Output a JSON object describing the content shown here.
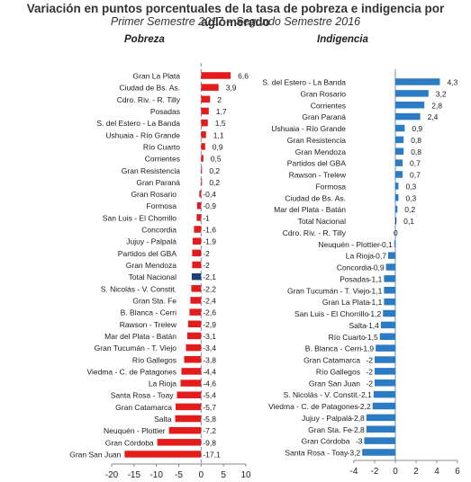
{
  "title": "Variación en puntos porcentuales de la tasa de pobreza e indigencia por aglomerado",
  "subtitle": "Primer Semestre 2017 – Segundo Semestre 2016",
  "colors": {
    "negative": "#e31b1b",
    "positive": "#e31b1b",
    "national": "#1f3e78",
    "indigence": "#2b7cc4"
  },
  "chart_data": [
    {
      "type": "bar",
      "orientation": "horizontal",
      "title": "Pobreza",
      "xlim": [
        -20,
        10
      ],
      "xticks": [
        -20,
        -15,
        -10,
        -5,
        0,
        5,
        10
      ],
      "categories": [
        "Gran La Plata",
        "Ciudad de Bs. As.",
        "Cdro. Riv. - R. Tilly",
        "Posadas",
        "S. del Estero - La Banda",
        "Ushuaia - Río Grande",
        "Río Cuarto",
        "Corrientes",
        "Gran Resistencia",
        "Gran Paraná",
        "Gran Rosario",
        "Formosa",
        "San Luis - El Chorrillo",
        "Concordia",
        "Jujuy - Palpalá",
        "Partidos del GBA",
        "Gran Mendoza",
        "Total Nacional",
        "S. Nicolás - V. Constit.",
        "Gran Sta. Fe",
        "B. Blanca - Cerri",
        "Rawson - Trelew",
        "Mar del Plata - Batán",
        "Gran Tucumán - T. Viejo",
        "Río Gallegos",
        "Viedma - C. de Patagones",
        "La Rioja",
        "Santa Rosa - Toay",
        "Gran Catamarca",
        "Salta",
        "Neuquén - Plottier",
        "Gran Córdoba",
        "Gran San Juan"
      ],
      "values": [
        6.6,
        3.9,
        2,
        1.7,
        1.5,
        1.1,
        0.9,
        0.5,
        0.2,
        0.2,
        -0.4,
        -0.9,
        -1,
        -1.6,
        -1.9,
        -2,
        -2,
        -2.1,
        -2.2,
        -2.4,
        -2.6,
        -2.9,
        -3.1,
        -3.4,
        -3.8,
        -4.4,
        -4.6,
        -5.4,
        -5.7,
        -5.8,
        -7.2,
        -9.8,
        -17.1
      ],
      "value_labels": [
        "6,6",
        "3,9",
        "2",
        "1,7",
        "1,5",
        "1,1",
        "0,9",
        "0,5",
        "0,2",
        "0,2",
        "-0,4",
        "-0,9",
        "-1",
        "-1,6",
        "-1,9",
        "-2",
        "-2",
        "-2,1",
        "-2,2",
        "-2,4",
        "-2,6",
        "-2,9",
        "-3,1",
        "-3,4",
        "-3,8",
        "-4,4",
        "-4,6",
        "-5,4",
        "-5,7",
        "-5,8",
        "-7,2",
        "-9,8",
        "-17,1"
      ],
      "highlight": "Total Nacional",
      "reference_line": "dashed"
    },
    {
      "type": "bar",
      "orientation": "horizontal",
      "title": "Indigencia",
      "xlim": [
        -4,
        6
      ],
      "xticks": [
        -4,
        -2,
        0,
        2,
        4,
        6
      ],
      "categories": [
        "S. del Estero - La Banda",
        "Gran Rosario",
        "Corrientes",
        "Gran Paraná",
        "Ushuaia - Río Grande",
        "Gran Resistencia",
        "Gran Mendoza",
        "Partidos del GBA",
        "Rawson - Trelew",
        "Formosa",
        "Ciudad de Bs. As.",
        "Mar del Plata - Batán",
        "Total Nacional",
        "Cdro. Riv. - R. Tilly",
        "Neuquén - Plottier",
        "La Rioja",
        "Concordia",
        "Posadas",
        "Gran Tucumán - T. Viejo",
        "Gran La Plata",
        "San Luis - El Chorrillo",
        "Salta",
        "Río Cuarto",
        "B. Blanca - Cerri",
        "Gran Catamarca",
        "Río Gallegos",
        "Gran San Juan",
        "S. Nicolás - V. Constit.",
        "Viedma - C. de Patagones",
        "Jujuy - Palpalá",
        "Gran Sta. Fe",
        "Gran Córdoba",
        "Santa Rosa - Toay"
      ],
      "values": [
        4.3,
        3.2,
        2.8,
        2.4,
        0.9,
        0.8,
        0.8,
        0.7,
        0.7,
        0.3,
        0.3,
        0.2,
        0.1,
        0,
        -0.1,
        -0.7,
        -0.9,
        -1.1,
        -1.1,
        -1.1,
        -1.2,
        -1.4,
        -1.5,
        -1.9,
        -2,
        -2,
        -2,
        -2.1,
        -2.2,
        -2.8,
        -2.8,
        -3,
        -3.2
      ],
      "value_labels": [
        "4,3",
        "3,2",
        "2,8",
        "2,4",
        "0,9",
        "0,8",
        "0,8",
        "0,7",
        "0,7",
        "0,3",
        "0,3",
        "0,2",
        "0,1",
        "0",
        "-0,1",
        "-0,7",
        "-0,9",
        "-1,1",
        "-1,1",
        "-1,1",
        "-1,2",
        "-1,4",
        "-1,5",
        "-1,9",
        "-2",
        "-2",
        "-2",
        "-2,1",
        "-2,2",
        "-2,8",
        "-2,8",
        "-3",
        "-3,2"
      ],
      "highlight": "Total Nacional"
    }
  ]
}
